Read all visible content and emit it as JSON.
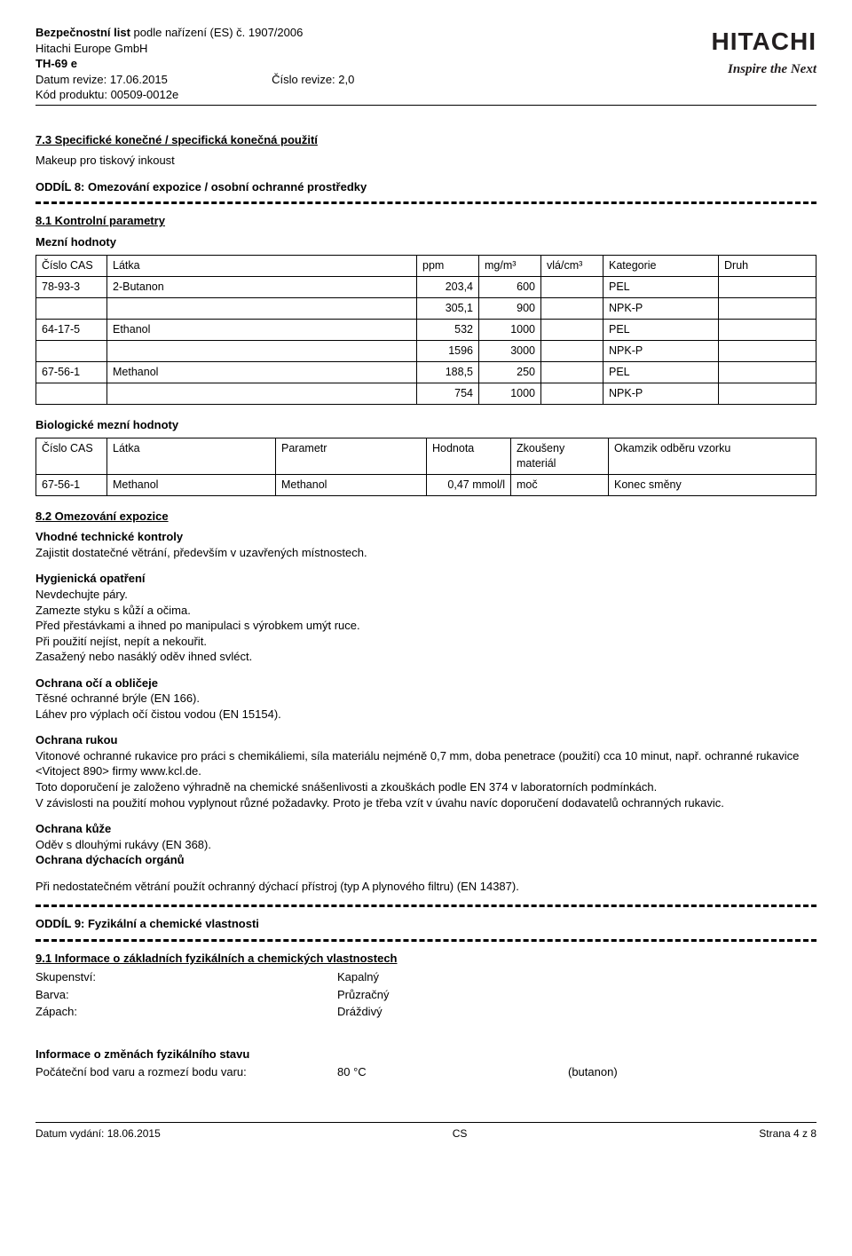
{
  "header": {
    "title_prefix": "Bezpečnostní list",
    "title_suffix": " podle nařízení (ES) č. 1907/2006",
    "company": "Hitachi Europe GmbH",
    "product_name": "TH-69 e",
    "revision_date_label": "Datum revize: ",
    "revision_date": "17.06.2015",
    "product_code_label": "Kód produktu: ",
    "product_code": "00509-0012e",
    "revision_num_label": "Číslo revize: ",
    "revision_num": "2,0",
    "logo_main": "HITACHI",
    "logo_tag": "Inspire the Next"
  },
  "s73": {
    "heading": "7.3 Specifické konečné / specifická konečná použití",
    "text": "Makeup pro tiskový inkoust"
  },
  "s8": {
    "heading": "ODDÍL 8: Omezování expozice / osobní ochranné prostředky"
  },
  "s81": {
    "heading": "8.1 Kontrolní parametry",
    "limits_heading": "Mezní hodnoty",
    "t1": {
      "headers": [
        "Číslo CAS",
        "Látka",
        "ppm",
        "mg/m³",
        "vlá/cm³",
        "Kategorie",
        "Druh"
      ],
      "rows": [
        [
          "78-93-3",
          "2-Butanon",
          "203,4",
          "600",
          "",
          "PEL",
          ""
        ],
        [
          "",
          "",
          "305,1",
          "900",
          "",
          "NPK-P",
          ""
        ],
        [
          "64-17-5",
          "Ethanol",
          "532",
          "1000",
          "",
          "PEL",
          ""
        ],
        [
          "",
          "",
          "1596",
          "3000",
          "",
          "NPK-P",
          ""
        ],
        [
          "67-56-1",
          "Methanol",
          "188,5",
          "250",
          "",
          "PEL",
          ""
        ],
        [
          "",
          "",
          "754",
          "1000",
          "",
          "NPK-P",
          ""
        ]
      ]
    },
    "bio_heading": "Biologické mezní hodnoty",
    "t2": {
      "headers": [
        "Číslo CAS",
        "Látka",
        "Parametr",
        "Hodnota",
        "Zkoušeny materiál",
        "Okamzik odběru vzorku"
      ],
      "rows": [
        [
          "67-56-1",
          "Methanol",
          "Methanol",
          "0,47 mmol/l",
          "moč",
          "Konec směny"
        ]
      ]
    }
  },
  "s82": {
    "heading": "8.2 Omezování expozice",
    "tech_h": "Vhodné technické kontroly",
    "tech_t": "Zajistit dostatečné větrání, především v uzavřených místnostech.",
    "hyg_h": "Hygienická opatření",
    "hyg_lines": [
      "Nevdechujte páry.",
      "Zamezte styku s kůží a očima.",
      "Před přestávkami a ihned po manipulaci s výrobkem umýt ruce.",
      "Při použití nejíst, nepít a nekouřit.",
      "Zasažený nebo nasáklý oděv ihned svléct."
    ],
    "eye_h": "Ochrana očí a obličeje",
    "eye_lines": [
      "Těsné ochranné brýle (EN 166).",
      "Láhev pro výplach očí čistou vodou (EN 15154)."
    ],
    "hand_h": "Ochrana rukou",
    "hand_lines": [
      "Vitonové ochranné rukavice pro práci s chemikáliemi, síla materiálu nejméně 0,7 mm, doba penetrace (použití) cca 10 minut, např. ochranné rukavice <Vitoject 890> firmy www.kcl.de.",
      "Toto doporučení je založeno výhradně na chemické snášenlivosti a zkouškách podle EN 374 v laboratorních podmínkách.",
      "V závislosti na použití mohou vyplynout různé požadavky. Proto je třeba vzít v úvahu navíc doporučení dodavatelů ochranných rukavic."
    ],
    "skin_h": "Ochrana kůže",
    "skin_t": "Oděv s dlouhými rukávy (EN 368).",
    "resp_h": "Ochrana dýchacích orgánů",
    "resp_t": "Při nedostatečném větrání použít ochranný dýchací přístroj (typ A plynového filtru) (EN 14387)."
  },
  "s9": {
    "heading": "ODDÍL 9: Fyzikální a chemické vlastnosti"
  },
  "s91": {
    "heading": "9.1 Informace o základních fyzikálních a chemických vlastnostech",
    "rows": [
      {
        "label": "Skupenství:",
        "val": "Kapalný"
      },
      {
        "label": "Barva:",
        "val": "Průzračný"
      },
      {
        "label": "Zápach:",
        "val": "Dráždivý"
      }
    ],
    "phase_h": "Informace o změnách fyzikálního stavu",
    "bp_label": "Počáteční bod varu a rozmezí bodu varu:",
    "bp_val": "80 °C",
    "bp_extra": "(butanon)"
  },
  "footer": {
    "left_label": "Datum vydání: ",
    "left_val": "18.06.2015",
    "center": "CS",
    "right": "Strana 4 z 8"
  }
}
